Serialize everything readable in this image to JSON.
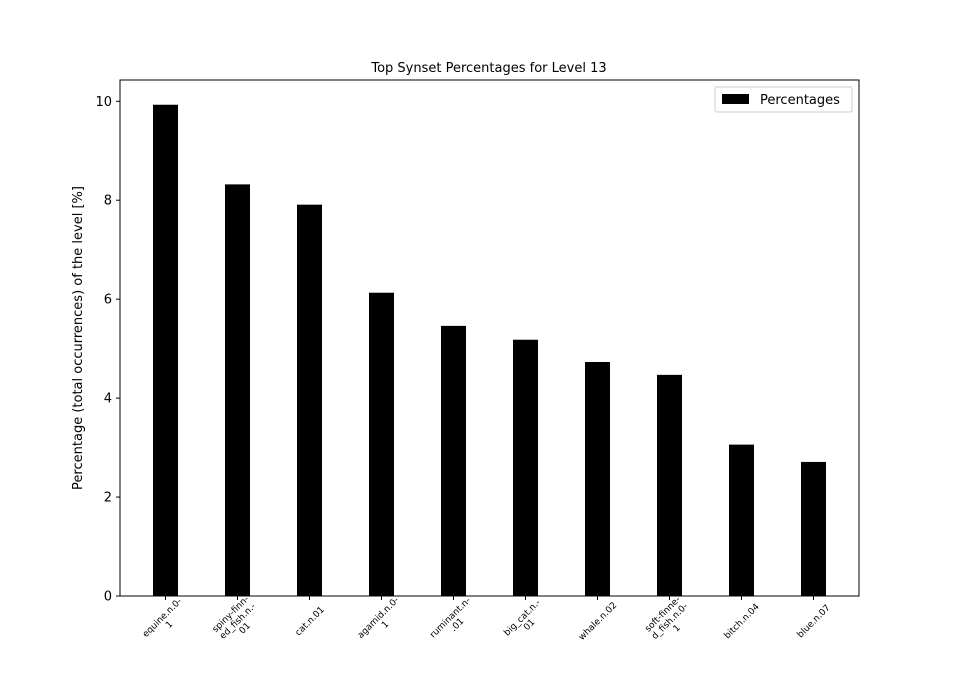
{
  "chart_data": {
    "type": "bar",
    "title": "Top Synset Percentages for Level 13",
    "xlabel": "",
    "ylabel": "Percentage (total occurrences) of the level [%]",
    "categories": [
      [
        "equine.n.0-",
        "1"
      ],
      [
        "spiny-finn-",
        "ed_fish.n.-",
        "01"
      ],
      [
        "cat.n.01"
      ],
      [
        "agamid.n.0-",
        "1"
      ],
      [
        "ruminant.n-",
        ".01"
      ],
      [
        "big_cat.n.-",
        "01"
      ],
      [
        "whale.n.02"
      ],
      [
        "soft-finne-",
        "d_fish.n.0-",
        "1"
      ],
      [
        "bitch.n.04"
      ],
      [
        "blue.n.07"
      ]
    ],
    "series": [
      {
        "name": "Percentages",
        "values": [
          9.93,
          8.32,
          7.91,
          6.13,
          5.46,
          5.18,
          4.73,
          4.47,
          3.06,
          2.71
        ],
        "color": "#000000"
      }
    ],
    "ylim": [
      0,
      10.43
    ],
    "yticks": [
      0,
      2,
      4,
      6,
      8,
      10
    ],
    "grid": false,
    "legend_position": "top-right"
  }
}
